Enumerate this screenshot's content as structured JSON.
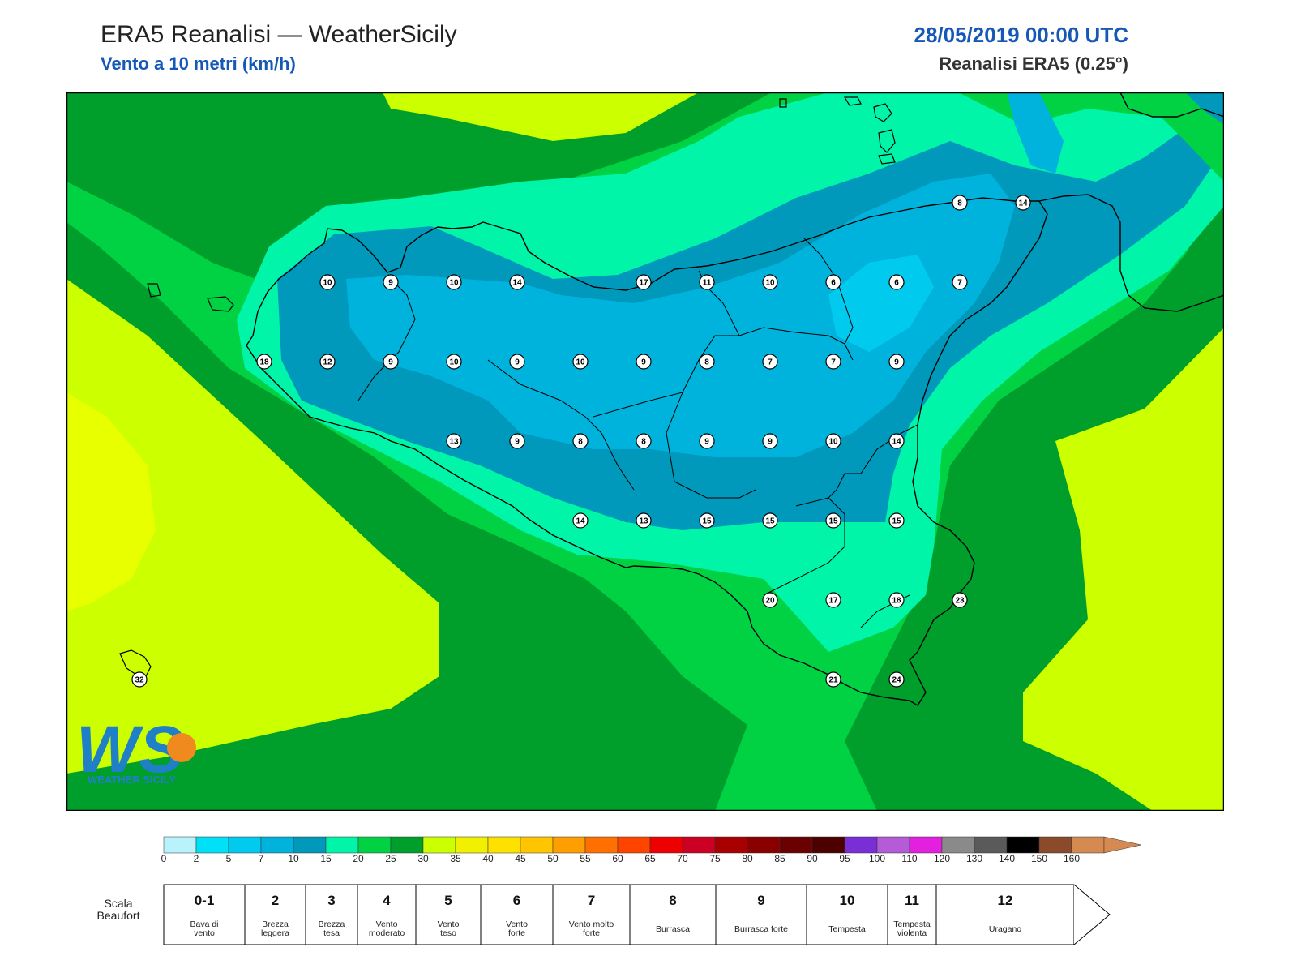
{
  "header": {
    "title": "ERA5 Reanalisi — WeatherSicily",
    "subtitle": "Vento a 10 metri (km/h)",
    "datetime": "28/05/2019 00:00 UTC",
    "resolution": "Reanalisi ERA5 (0.25°)"
  },
  "logo": {
    "text": "WS",
    "caption": "WEATHER SICILY"
  },
  "stations": [
    {
      "v": "10"
    },
    {
      "v": "9"
    },
    {
      "v": "10"
    },
    {
      "v": "14"
    },
    {
      "v": "17"
    },
    {
      "v": "11"
    },
    {
      "v": "10"
    },
    {
      "v": "6"
    },
    {
      "v": "6"
    },
    {
      "v": "7"
    },
    {
      "v": "18"
    },
    {
      "v": "12"
    },
    {
      "v": "9"
    },
    {
      "v": "10"
    },
    {
      "v": "9"
    },
    {
      "v": "10"
    },
    {
      "v": "9"
    },
    {
      "v": "8"
    },
    {
      "v": "7"
    },
    {
      "v": "7"
    },
    {
      "v": "9"
    },
    {
      "v": "13"
    },
    {
      "v": "9"
    },
    {
      "v": "8"
    },
    {
      "v": "8"
    },
    {
      "v": "9"
    },
    {
      "v": "9"
    },
    {
      "v": "10"
    },
    {
      "v": "14"
    },
    {
      "v": "14"
    },
    {
      "v": "13"
    },
    {
      "v": "15"
    },
    {
      "v": "15"
    },
    {
      "v": "15"
    },
    {
      "v": "15"
    },
    {
      "v": "20"
    },
    {
      "v": "17"
    },
    {
      "v": "18"
    },
    {
      "v": "23"
    },
    {
      "v": "21"
    },
    {
      "v": "24"
    },
    {
      "v": "8"
    },
    {
      "v": "14"
    },
    {
      "v": "32"
    }
  ],
  "colorbar": {
    "colors": [
      "#b8f3fb",
      "#00e0f7",
      "#00cbee",
      "#00b3dc",
      "#0099bb",
      "#00f5a8",
      "#00d244",
      "#009e2a",
      "#ccff00",
      "#f0f000",
      "#ffe100",
      "#ffc500",
      "#ff9e00",
      "#ff7000",
      "#ff4400",
      "#ee0000",
      "#cc0022",
      "#a80000",
      "#8a0000",
      "#6a0000",
      "#4c0000",
      "#7a2ed6",
      "#b55bd8",
      "#e320e0",
      "#8a8a8a",
      "#5a5a5a",
      "#000000",
      "#8b4a2a",
      "#d48a50"
    ],
    "ticks": [
      "0",
      "2",
      "5",
      "7",
      "10",
      "15",
      "20",
      "25",
      "30",
      "35",
      "40",
      "45",
      "50",
      "55",
      "60",
      "65",
      "70",
      "75",
      "80",
      "85",
      "90",
      "95",
      "100",
      "110",
      "120",
      "130",
      "140",
      "150",
      "160"
    ]
  },
  "beaufort": {
    "label": "Scala Beaufort",
    "cells": [
      {
        "n": "0-1",
        "desc": "Bava di vento"
      },
      {
        "n": "2",
        "desc": "Brezza leggera"
      },
      {
        "n": "3",
        "desc": "Brezza tesa"
      },
      {
        "n": "4",
        "desc": "Vento moderato"
      },
      {
        "n": "5",
        "desc": "Vento teso"
      },
      {
        "n": "6",
        "desc": "Vento forte"
      },
      {
        "n": "7",
        "desc": "Vento molto forte"
      },
      {
        "n": "8",
        "desc": "Burrasca"
      },
      {
        "n": "9",
        "desc": "Burrasca forte"
      },
      {
        "n": "10",
        "desc": "Tempesta"
      },
      {
        "n": "11",
        "desc": "Tempesta violenta"
      },
      {
        "n": "12",
        "desc": "Uragano"
      }
    ]
  }
}
